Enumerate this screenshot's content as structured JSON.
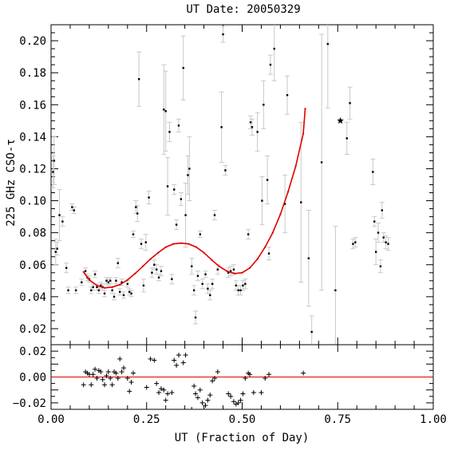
{
  "chart_data": [
    {
      "type": "scatter",
      "title": "UT Date: 20050329",
      "xlabel": "",
      "ylabel": "225 GHz CSO-τ",
      "xlim": [
        0.0,
        1.0
      ],
      "ylim": [
        0.01,
        0.21
      ],
      "grid": false,
      "y_ticks": [
        "0.02",
        "0.04",
        "0.06",
        "0.08",
        "0.10",
        "0.12",
        "0.14",
        "0.16",
        "0.18",
        "0.20"
      ],
      "y_tick_values": [
        0.02,
        0.04,
        0.06,
        0.08,
        0.1,
        0.12,
        0.14,
        0.16,
        0.18,
        0.2
      ],
      "x_tick_values": [
        0.0,
        0.25,
        0.5,
        0.75,
        1.0
      ],
      "points": [
        {
          "x": 0.005,
          "y": 0.118,
          "err": 0.01
        },
        {
          "x": 0.008,
          "y": 0.125,
          "err": 0.015
        },
        {
          "x": 0.012,
          "y": 0.068,
          "err": 0.008
        },
        {
          "x": 0.016,
          "y": 0.07,
          "err": 0.004
        },
        {
          "x": 0.022,
          "y": 0.091,
          "err": 0.016
        },
        {
          "x": 0.03,
          "y": 0.087,
          "err": 0.003
        },
        {
          "x": 0.04,
          "y": 0.058,
          "err": 0.003
        },
        {
          "x": 0.045,
          "y": 0.044,
          "err": 0.002
        },
        {
          "x": 0.055,
          "y": 0.096,
          "err": 0.002
        },
        {
          "x": 0.06,
          "y": 0.094,
          "err": 0.002
        },
        {
          "x": 0.065,
          "y": 0.044,
          "err": 0.002
        },
        {
          "x": 0.08,
          "y": 0.049,
          "err": 0.002
        },
        {
          "x": 0.09,
          "y": 0.056,
          "err": 0.002
        },
        {
          "x": 0.095,
          "y": 0.052,
          "err": 0.002
        },
        {
          "x": 0.1,
          "y": 0.051,
          "err": 0.002
        },
        {
          "x": 0.105,
          "y": 0.044,
          "err": 0.002
        },
        {
          "x": 0.11,
          "y": 0.046,
          "err": 0.002
        },
        {
          "x": 0.115,
          "y": 0.054,
          "err": 0.002
        },
        {
          "x": 0.12,
          "y": 0.046,
          "err": 0.002
        },
        {
          "x": 0.125,
          "y": 0.044,
          "err": 0.002
        },
        {
          "x": 0.13,
          "y": 0.047,
          "err": 0.002
        },
        {
          "x": 0.135,
          "y": 0.046,
          "err": 0.002
        },
        {
          "x": 0.14,
          "y": 0.042,
          "err": 0.002
        },
        {
          "x": 0.145,
          "y": 0.05,
          "err": 0.002
        },
        {
          "x": 0.15,
          "y": 0.049,
          "err": 0.002
        },
        {
          "x": 0.155,
          "y": 0.05,
          "err": 0.002
        },
        {
          "x": 0.16,
          "y": 0.044,
          "err": 0.002
        },
        {
          "x": 0.165,
          "y": 0.04,
          "err": 0.002
        },
        {
          "x": 0.17,
          "y": 0.05,
          "err": 0.002
        },
        {
          "x": 0.175,
          "y": 0.061,
          "err": 0.003
        },
        {
          "x": 0.18,
          "y": 0.043,
          "err": 0.002
        },
        {
          "x": 0.185,
          "y": 0.049,
          "err": 0.002
        },
        {
          "x": 0.19,
          "y": 0.041,
          "err": 0.002
        },
        {
          "x": 0.2,
          "y": 0.048,
          "err": 0.002
        },
        {
          "x": 0.205,
          "y": 0.043,
          "err": 0.002
        },
        {
          "x": 0.21,
          "y": 0.042,
          "err": 0.002
        },
        {
          "x": 0.215,
          "y": 0.079,
          "err": 0.002
        },
        {
          "x": 0.222,
          "y": 0.096,
          "err": 0.004
        },
        {
          "x": 0.226,
          "y": 0.092,
          "err": 0.005
        },
        {
          "x": 0.23,
          "y": 0.176,
          "err": 0.017
        },
        {
          "x": 0.236,
          "y": 0.073,
          "err": 0.003
        },
        {
          "x": 0.242,
          "y": 0.047,
          "err": 0.004
        },
        {
          "x": 0.248,
          "y": 0.074,
          "err": 0.005
        },
        {
          "x": 0.256,
          "y": 0.102,
          "err": 0.004
        },
        {
          "x": 0.264,
          "y": 0.055,
          "err": 0.003
        },
        {
          "x": 0.27,
          "y": 0.06,
          "err": 0.003
        },
        {
          "x": 0.276,
          "y": 0.057,
          "err": 0.003
        },
        {
          "x": 0.282,
          "y": 0.052,
          "err": 0.002
        },
        {
          "x": 0.288,
          "y": 0.056,
          "err": 0.003
        },
        {
          "x": 0.295,
          "y": 0.157,
          "err": 0.028
        },
        {
          "x": 0.3,
          "y": 0.156,
          "err": 0.025
        },
        {
          "x": 0.305,
          "y": 0.109,
          "err": 0.018
        },
        {
          "x": 0.31,
          "y": 0.143,
          "err": 0.006
        },
        {
          "x": 0.316,
          "y": 0.051,
          "err": 0.003
        },
        {
          "x": 0.322,
          "y": 0.107,
          "err": 0.003
        },
        {
          "x": 0.328,
          "y": 0.085,
          "err": 0.003
        },
        {
          "x": 0.334,
          "y": 0.147,
          "err": 0.004
        },
        {
          "x": 0.34,
          "y": 0.101,
          "err": 0.004
        },
        {
          "x": 0.346,
          "y": 0.183,
          "err": 0.02
        },
        {
          "x": 0.352,
          "y": 0.091,
          "err": 0.02
        },
        {
          "x": 0.358,
          "y": 0.116,
          "err": 0.012
        },
        {
          "x": 0.362,
          "y": 0.12,
          "err": 0.02
        },
        {
          "x": 0.368,
          "y": 0.059,
          "err": 0.005
        },
        {
          "x": 0.374,
          "y": 0.044,
          "err": 0.003
        },
        {
          "x": 0.378,
          "y": 0.027,
          "err": 0.004
        },
        {
          "x": 0.384,
          "y": 0.053,
          "err": 0.003
        },
        {
          "x": 0.39,
          "y": 0.079,
          "err": 0.002
        },
        {
          "x": 0.396,
          "y": 0.048,
          "err": 0.003
        },
        {
          "x": 0.404,
          "y": 0.054,
          "err": 0.002
        },
        {
          "x": 0.41,
          "y": 0.045,
          "err": 0.003
        },
        {
          "x": 0.416,
          "y": 0.041,
          "err": 0.003
        },
        {
          "x": 0.422,
          "y": 0.048,
          "err": 0.003
        },
        {
          "x": 0.428,
          "y": 0.091,
          "err": 0.003
        },
        {
          "x": 0.436,
          "y": 0.057,
          "err": 0.003
        },
        {
          "x": 0.446,
          "y": 0.146,
          "err": 0.022
        },
        {
          "x": 0.45,
          "y": 0.204,
          "err": 0.005
        },
        {
          "x": 0.456,
          "y": 0.119,
          "err": 0.003
        },
        {
          "x": 0.464,
          "y": 0.055,
          "err": 0.003
        },
        {
          "x": 0.47,
          "y": 0.056,
          "err": 0.003
        },
        {
          "x": 0.478,
          "y": 0.057,
          "err": 0.003
        },
        {
          "x": 0.484,
          "y": 0.047,
          "err": 0.003
        },
        {
          "x": 0.49,
          "y": 0.044,
          "err": 0.003
        },
        {
          "x": 0.496,
          "y": 0.044,
          "err": 0.003
        },
        {
          "x": 0.502,
          "y": 0.047,
          "err": 0.003
        },
        {
          "x": 0.508,
          "y": 0.048,
          "err": 0.003
        },
        {
          "x": 0.516,
          "y": 0.079,
          "err": 0.003
        },
        {
          "x": 0.522,
          "y": 0.149,
          "err": 0.004
        },
        {
          "x": 0.526,
          "y": 0.146,
          "err": 0.005
        },
        {
          "x": 0.54,
          "y": 0.143,
          "err": 0.012
        },
        {
          "x": 0.552,
          "y": 0.1,
          "err": 0.015
        },
        {
          "x": 0.556,
          "y": 0.16,
          "err": 0.015
        },
        {
          "x": 0.566,
          "y": 0.113,
          "err": 0.015
        },
        {
          "x": 0.57,
          "y": 0.067,
          "err": 0.004
        },
        {
          "x": 0.574,
          "y": 0.185,
          "err": 0.006
        },
        {
          "x": 0.584,
          "y": 0.195,
          "err": 0.02
        },
        {
          "x": 0.612,
          "y": 0.098,
          "err": 0.018
        },
        {
          "x": 0.618,
          "y": 0.166,
          "err": 0.012
        },
        {
          "x": 0.654,
          "y": 0.099,
          "err": 0.05
        },
        {
          "x": 0.674,
          "y": 0.064,
          "err": 0.03
        },
        {
          "x": 0.682,
          "y": 0.018,
          "err": 0.01
        },
        {
          "x": 0.708,
          "y": 0.124,
          "err": 0.08
        },
        {
          "x": 0.724,
          "y": 0.198,
          "err": 0.04
        },
        {
          "x": 0.744,
          "y": 0.044,
          "err": 0.04
        },
        {
          "x": 0.774,
          "y": 0.139,
          "err": 0.01
        },
        {
          "x": 0.782,
          "y": 0.161,
          "err": 0.01
        },
        {
          "x": 0.79,
          "y": 0.073,
          "err": 0.003
        },
        {
          "x": 0.796,
          "y": 0.074,
          "err": 0.003
        },
        {
          "x": 0.842,
          "y": 0.118,
          "err": 0.008
        },
        {
          "x": 0.846,
          "y": 0.087,
          "err": 0.003
        },
        {
          "x": 0.85,
          "y": 0.068,
          "err": 0.008
        },
        {
          "x": 0.856,
          "y": 0.08,
          "err": 0.006
        },
        {
          "x": 0.862,
          "y": 0.059,
          "err": 0.004
        },
        {
          "x": 0.866,
          "y": 0.094,
          "err": 0.005
        },
        {
          "x": 0.87,
          "y": 0.077,
          "err": 0.003
        },
        {
          "x": 0.876,
          "y": 0.074,
          "err": 0.004
        },
        {
          "x": 0.882,
          "y": 0.073,
          "err": 0.004
        }
      ],
      "marker": {
        "x": 0.757,
        "y": 0.15
      },
      "fit": {
        "x": [
          0.085,
          0.1,
          0.12,
          0.14,
          0.16,
          0.18,
          0.2,
          0.22,
          0.24,
          0.26,
          0.28,
          0.3,
          0.32,
          0.34,
          0.36,
          0.38,
          0.4,
          0.42,
          0.44,
          0.46,
          0.48,
          0.5,
          0.52,
          0.54,
          0.56,
          0.58,
          0.6,
          0.62,
          0.64,
          0.66,
          0.665
        ],
        "y": [
          0.0555,
          0.0505,
          0.047,
          0.0455,
          0.046,
          0.0475,
          0.0505,
          0.0545,
          0.059,
          0.0635,
          0.0675,
          0.071,
          0.073,
          0.0735,
          0.073,
          0.071,
          0.0675,
          0.063,
          0.059,
          0.056,
          0.0545,
          0.055,
          0.058,
          0.0635,
          0.071,
          0.08,
          0.0915,
          0.1055,
          0.1215,
          0.142,
          0.1575
        ]
      },
      "colors": {
        "error_bar": "#c8c8c8",
        "fit": "#e00000",
        "point": "#000000"
      }
    },
    {
      "type": "scatter",
      "xlabel": "UT (Fraction of Day)",
      "ylabel": "",
      "xlim": [
        0.0,
        1.0
      ],
      "ylim": [
        -0.025,
        0.025
      ],
      "y_ticks": [
        "−0.02",
        "0.00",
        "0.02"
      ],
      "y_tick_values": [
        -0.02,
        0.0,
        0.02
      ],
      "x_ticks": [
        "0.00",
        "0.25",
        "0.50",
        "0.75",
        "1.00"
      ],
      "x_tick_values": [
        0.0,
        0.25,
        0.5,
        0.75,
        1.0
      ],
      "zero_line": true,
      "residuals": {
        "x": [
          0.085,
          0.09,
          0.095,
          0.1,
          0.105,
          0.11,
          0.115,
          0.12,
          0.125,
          0.13,
          0.135,
          0.14,
          0.145,
          0.15,
          0.155,
          0.16,
          0.165,
          0.17,
          0.175,
          0.18,
          0.185,
          0.19,
          0.2,
          0.205,
          0.21,
          0.215,
          0.25,
          0.26,
          0.27,
          0.276,
          0.282,
          0.288,
          0.295,
          0.3,
          0.305,
          0.316,
          0.322,
          0.328,
          0.334,
          0.346,
          0.352,
          0.368,
          0.374,
          0.378,
          0.384,
          0.39,
          0.396,
          0.404,
          0.41,
          0.416,
          0.422,
          0.428,
          0.436,
          0.464,
          0.47,
          0.478,
          0.484,
          0.49,
          0.496,
          0.502,
          0.508,
          0.516,
          0.52,
          0.53,
          0.55,
          0.56,
          0.57,
          0.66
        ],
        "y": [
          -0.006,
          0.004,
          0.003,
          0.002,
          -0.006,
          0.002,
          0.006,
          -0.001,
          0.005,
          0.004,
          -0.002,
          -0.006,
          0.001,
          0.004,
          -0.001,
          -0.006,
          0.004,
          0.003,
          -0.001,
          0.014,
          0.004,
          0.007,
          -0.001,
          -0.011,
          -0.004,
          0.003,
          -0.008,
          0.014,
          0.013,
          -0.005,
          -0.012,
          -0.009,
          -0.01,
          -0.018,
          -0.013,
          -0.012,
          0.013,
          0.009,
          0.017,
          0.011,
          0.017,
          -0.025,
          -0.007,
          -0.013,
          -0.016,
          -0.01,
          -0.02,
          -0.022,
          -0.018,
          -0.014,
          -0.003,
          -0.001,
          0.004,
          -0.013,
          -0.015,
          -0.019,
          -0.021,
          -0.02,
          -0.018,
          -0.013,
          -0.001,
          0.003,
          0.002,
          -0.012,
          -0.012,
          -0.001,
          0.002,
          0.003
        ]
      },
      "colors": {
        "zero_line": "#e00000",
        "point": "#000000"
      }
    }
  ]
}
